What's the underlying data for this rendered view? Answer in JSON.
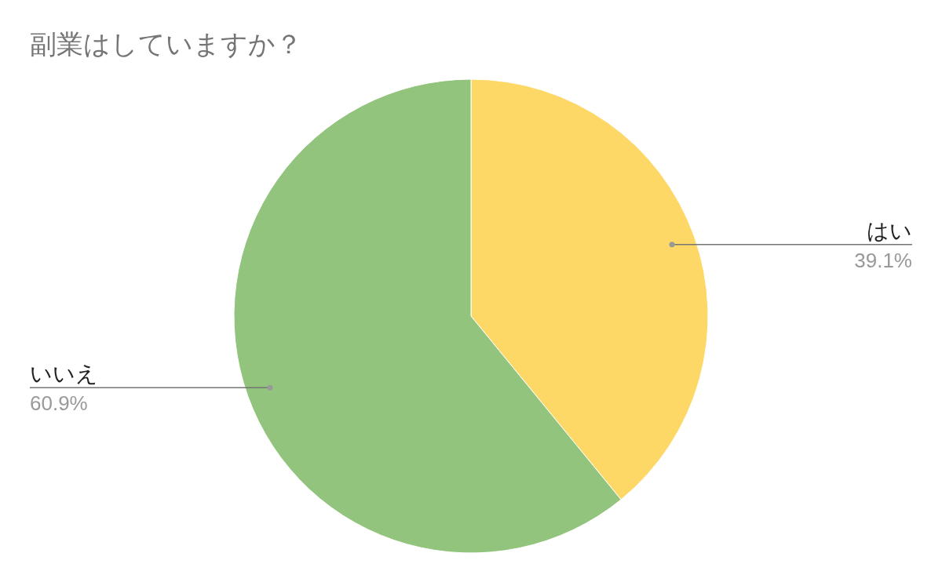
{
  "chart_data": {
    "type": "pie",
    "title": "副業はしていますか？",
    "categories": [
      "はい",
      "いいえ"
    ],
    "values": [
      39.1,
      60.9
    ],
    "value_labels": [
      "39.1%",
      "60.9%"
    ],
    "colors": [
      "#fdd866",
      "#93c47d"
    ]
  }
}
